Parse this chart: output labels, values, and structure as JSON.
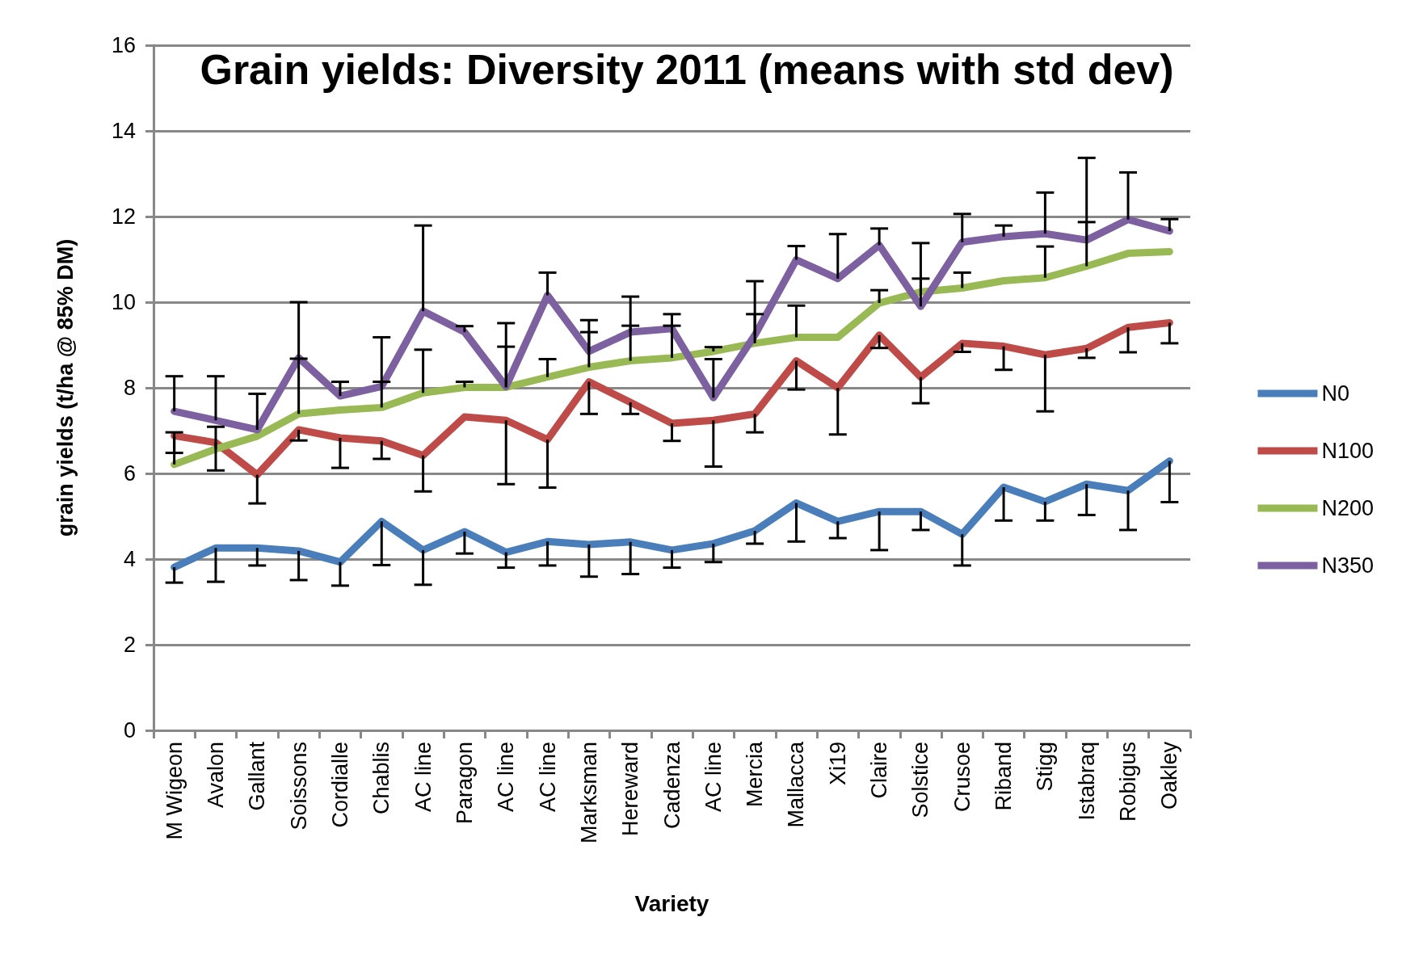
{
  "chart_data": {
    "type": "line",
    "title": "Grain yields: Diversity 2011 (means with std dev)",
    "xlabel": "Variety",
    "ylabel": "grain yields (t/ha @ 85% DM)",
    "categories": [
      "M Wigeon",
      "Avalon",
      "Gallant",
      "Soissons",
      "Cordialle",
      "Chablis",
      "AC line",
      "Paragon",
      "AC line",
      "AC line",
      "Marksman",
      "Hereward",
      "Cadenza",
      "AC line",
      "Mercia",
      "Mallacca",
      "Xi19",
      "Claire",
      "Solstice",
      "Crusoe",
      "Riband",
      "Stigg",
      "Istabraq",
      "Robigus",
      "Oakley"
    ],
    "series": [
      {
        "name": "N0",
        "color": "#4a7ebb",
        "values": [
          3.81,
          4.26,
          4.26,
          4.19,
          3.93,
          4.88,
          4.21,
          4.64,
          4.16,
          4.41,
          4.34,
          4.4,
          4.21,
          4.36,
          4.66,
          5.31,
          4.88,
          5.11,
          5.11,
          4.58,
          5.68,
          5.34,
          5.75,
          5.6,
          6.29
        ],
        "errors": [
          [
            3.45,
            3.81
          ],
          [
            3.47,
            4.26
          ],
          [
            3.85,
            4.26
          ],
          [
            3.51,
            4.19
          ],
          [
            3.38,
            3.93
          ],
          [
            3.86,
            4.88
          ],
          [
            3.4,
            4.21
          ],
          [
            4.13,
            4.64
          ],
          [
            3.8,
            4.16
          ],
          [
            3.85,
            4.41
          ],
          [
            3.59,
            4.34
          ],
          [
            3.65,
            4.4
          ],
          [
            3.8,
            4.21
          ],
          [
            3.93,
            4.36
          ],
          [
            4.36,
            4.66
          ],
          [
            4.41,
            5.31
          ],
          [
            4.49,
            4.88
          ],
          [
            4.21,
            5.11
          ],
          [
            4.68,
            5.11
          ],
          [
            3.85,
            4.58
          ],
          [
            4.9,
            5.68
          ],
          [
            4.9,
            5.34
          ],
          [
            5.03,
            5.75
          ],
          [
            4.68,
            5.6
          ],
          [
            5.33,
            6.29
          ]
        ]
      },
      {
        "name": "N100",
        "color": "#be4b48",
        "values": [
          6.88,
          6.72,
          5.97,
          7.02,
          6.83,
          6.76,
          6.42,
          7.32,
          7.24,
          6.79,
          8.14,
          7.66,
          7.17,
          7.24,
          7.39,
          8.63,
          8.0,
          9.23,
          8.25,
          9.04,
          8.97,
          8.77,
          8.92,
          9.41,
          9.52
        ],
        "errors": [
          [
            6.48,
            6.88
          ],
          [
            6.07,
            6.72
          ],
          [
            5.3,
            5.97
          ],
          [
            6.77,
            7.02
          ],
          [
            6.13,
            6.83
          ],
          [
            6.34,
            6.76
          ],
          [
            5.58,
            6.42
          ],
          null,
          [
            5.75,
            7.24
          ],
          [
            5.67,
            6.79
          ],
          [
            7.39,
            8.14
          ],
          [
            7.39,
            7.66
          ],
          [
            6.76,
            7.17
          ],
          [
            6.16,
            7.24
          ],
          [
            6.96,
            7.39
          ],
          [
            7.96,
            8.63
          ],
          [
            6.91,
            8.0
          ],
          [
            8.93,
            9.23
          ],
          [
            7.64,
            8.25
          ],
          [
            8.84,
            9.04
          ],
          [
            8.42,
            8.97
          ],
          [
            7.45,
            8.77
          ],
          [
            8.7,
            8.92
          ],
          [
            8.83,
            9.41
          ],
          [
            9.04,
            9.52
          ]
        ]
      },
      {
        "name": "N200",
        "color": "#98b954",
        "values": [
          6.21,
          6.57,
          6.87,
          7.39,
          7.48,
          7.54,
          7.88,
          8.01,
          8.01,
          8.25,
          8.48,
          8.63,
          8.7,
          8.85,
          9.04,
          9.18,
          9.18,
          9.98,
          10.24,
          10.33,
          10.5,
          10.57,
          10.84,
          11.14,
          11.18
        ],
        "errors": [
          [
            6.21,
            6.96
          ],
          [
            6.57,
            7.09
          ],
          null,
          [
            7.39,
            8.68
          ],
          null,
          [
            7.54,
            8.14
          ],
          [
            7.88,
            8.89
          ],
          [
            8.01,
            8.14
          ],
          [
            8.01,
            8.96
          ],
          [
            8.25,
            8.67
          ],
          [
            8.48,
            9.3
          ],
          [
            8.63,
            9.45
          ],
          [
            8.7,
            9.45
          ],
          [
            8.85,
            8.95
          ],
          [
            9.04,
            9.72
          ],
          [
            9.18,
            9.92
          ],
          null,
          [
            9.98,
            10.28
          ],
          [
            10.24,
            10.55
          ],
          [
            10.33,
            10.69
          ],
          null,
          [
            10.57,
            11.3
          ],
          [
            10.84,
            11.87
          ],
          null,
          null
        ]
      },
      {
        "name": "N350",
        "color": "#7d60a0",
        "values": [
          7.45,
          7.24,
          7.02,
          8.7,
          7.81,
          8.03,
          9.79,
          9.3,
          8.03,
          10.16,
          8.85,
          9.3,
          9.38,
          7.77,
          9.23,
          10.99,
          10.55,
          11.33,
          9.9,
          11.4,
          11.53,
          11.6,
          11.45,
          11.93,
          11.66
        ],
        "errors": [
          [
            7.45,
            8.27
          ],
          [
            7.24,
            8.27
          ],
          [
            7.02,
            7.86
          ],
          [
            8.7,
            10.0
          ],
          [
            7.81,
            8.14
          ],
          [
            8.03,
            9.18
          ],
          [
            9.79,
            11.79
          ],
          [
            9.3,
            9.44
          ],
          [
            8.03,
            9.51
          ],
          [
            10.16,
            10.69
          ],
          [
            8.85,
            9.58
          ],
          [
            9.3,
            10.13
          ],
          [
            9.38,
            9.72
          ],
          [
            7.77,
            8.67
          ],
          [
            9.23,
            10.49
          ],
          [
            10.99,
            11.31
          ],
          [
            10.55,
            11.59
          ],
          [
            11.33,
            11.72
          ],
          [
            9.9,
            11.38
          ],
          [
            11.4,
            12.06
          ],
          [
            11.53,
            11.79
          ],
          [
            11.6,
            12.56
          ],
          [
            11.45,
            13.37
          ],
          [
            11.93,
            13.03
          ],
          [
            11.66,
            11.94
          ]
        ]
      }
    ],
    "ylim": [
      0,
      16
    ],
    "yticks": [
      0,
      2,
      4,
      6,
      8,
      10,
      12,
      14,
      16
    ],
    "grid": "y",
    "legend": "right",
    "marker": "none",
    "line_style": "solid"
  }
}
